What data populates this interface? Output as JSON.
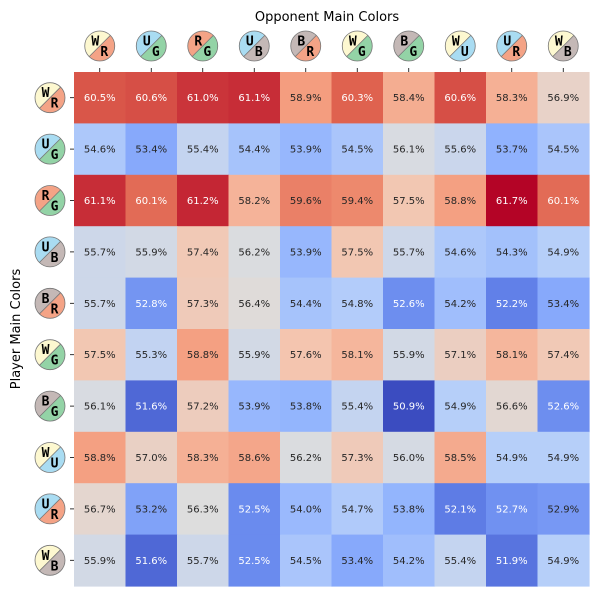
{
  "chart_data": {
    "type": "heatmap",
    "title": "Opponent Main Colors",
    "xlabel": "Opponent Main Colors",
    "ylabel": "Player Main Colors",
    "color_range": [
      50.9,
      61.7
    ],
    "colormap": "coolwarm",
    "mana_colors": {
      "W": "#fdf8d0",
      "U": "#a9dcf2",
      "B": "#c4b8b6",
      "R": "#f4a386",
      "G": "#93d3a6"
    },
    "columns": [
      {
        "label": "W/R",
        "top": "W",
        "bottom": "R"
      },
      {
        "label": "U/G",
        "top": "U",
        "bottom": "G"
      },
      {
        "label": "R/G",
        "top": "R",
        "bottom": "G"
      },
      {
        "label": "U/B",
        "top": "U",
        "bottom": "B"
      },
      {
        "label": "B/R",
        "top": "B",
        "bottom": "R"
      },
      {
        "label": "W/G",
        "top": "W",
        "bottom": "G"
      },
      {
        "label": "B/G",
        "top": "B",
        "bottom": "G"
      },
      {
        "label": "W/U",
        "top": "W",
        "bottom": "U"
      },
      {
        "label": "U/R",
        "top": "U",
        "bottom": "R"
      },
      {
        "label": "W/B",
        "top": "W",
        "bottom": "B"
      }
    ],
    "rows": [
      {
        "label": "W/R",
        "top": "W",
        "bottom": "R"
      },
      {
        "label": "U/G",
        "top": "U",
        "bottom": "G"
      },
      {
        "label": "R/G",
        "top": "R",
        "bottom": "G"
      },
      {
        "label": "U/B",
        "top": "U",
        "bottom": "B"
      },
      {
        "label": "B/R",
        "top": "B",
        "bottom": "R"
      },
      {
        "label": "W/G",
        "top": "W",
        "bottom": "G"
      },
      {
        "label": "B/G",
        "top": "B",
        "bottom": "G"
      },
      {
        "label": "W/U",
        "top": "W",
        "bottom": "U"
      },
      {
        "label": "U/R",
        "top": "U",
        "bottom": "R"
      },
      {
        "label": "W/B",
        "top": "W",
        "bottom": "B"
      }
    ],
    "values": [
      [
        60.5,
        60.6,
        61.0,
        61.1,
        58.9,
        60.3,
        58.4,
        60.6,
        58.3,
        56.9
      ],
      [
        54.6,
        53.4,
        55.4,
        54.4,
        53.9,
        54.5,
        56.1,
        55.6,
        53.7,
        54.5
      ],
      [
        61.1,
        60.1,
        61.2,
        58.2,
        59.6,
        59.4,
        57.5,
        58.8,
        61.7,
        60.1
      ],
      [
        55.7,
        55.9,
        57.4,
        56.2,
        53.9,
        57.5,
        55.7,
        54.6,
        54.3,
        54.9
      ],
      [
        55.7,
        52.8,
        57.3,
        56.4,
        54.4,
        54.8,
        52.6,
        54.2,
        52.2,
        53.4
      ],
      [
        57.5,
        55.3,
        58.8,
        55.9,
        57.6,
        58.1,
        55.9,
        57.1,
        58.1,
        57.4
      ],
      [
        56.1,
        51.6,
        57.2,
        53.9,
        53.8,
        55.4,
        50.9,
        54.9,
        56.6,
        52.6
      ],
      [
        58.8,
        57.0,
        58.3,
        58.6,
        56.2,
        57.3,
        56.0,
        58.5,
        54.9,
        54.9
      ],
      [
        56.7,
        53.2,
        56.3,
        52.5,
        54.0,
        54.7,
        53.8,
        52.1,
        52.7,
        52.9
      ],
      [
        55.9,
        51.6,
        55.7,
        52.5,
        54.5,
        53.4,
        54.2,
        55.4,
        51.9,
        54.9
      ]
    ]
  }
}
